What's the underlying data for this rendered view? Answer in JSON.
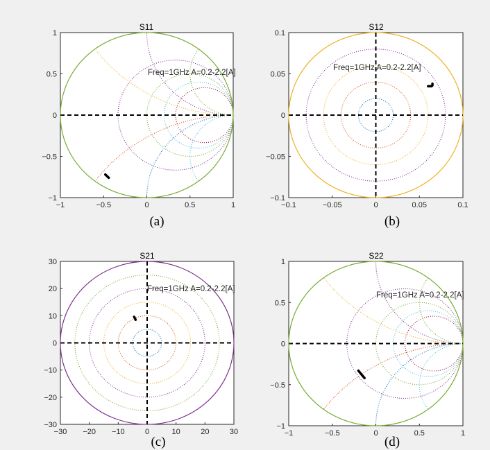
{
  "chart_data": [
    {
      "type": "scatter",
      "subtype": "smith",
      "title": "S11",
      "caption": "(a)",
      "annotation": "Freq=1GHz A=0.2-2.2[A]",
      "xlim": [
        -1,
        1
      ],
      "ylim": [
        -1,
        1
      ],
      "xticks": [
        -1,
        -0.5,
        0,
        0.5,
        1
      ],
      "yticks": [
        -1,
        -0.5,
        0,
        0.5,
        1
      ],
      "xtick_labels": [
        "−1",
        "−0.5",
        "0",
        "0.5",
        "1"
      ],
      "ytick_labels": [
        "−1",
        "−0.5",
        "0",
        "0.5",
        "1"
      ],
      "boundary_color": "#77ac30",
      "resistance_circles": [
        {
          "r": 0.5,
          "color": "#7e2f8e"
        },
        {
          "r": 1,
          "color": "#77ac30"
        },
        {
          "r": 1.5,
          "color": "#4dbeee"
        },
        {
          "r": 2,
          "color": "#a2142f"
        }
      ],
      "reactance_arcs": [
        {
          "x": 1,
          "color": "#7e2f8e"
        },
        {
          "x": -1,
          "color": "#0072bd"
        },
        {
          "x": 0.5,
          "color": "#edb120"
        },
        {
          "x": -0.5,
          "color": "#d95319"
        },
        {
          "x": 2,
          "color": "#77ac30"
        },
        {
          "x": -2,
          "color": "#4dbeee"
        }
      ],
      "dashed_axes": [
        "horizontal"
      ],
      "series": [
        {
          "name": "trace",
          "x": [
            -0.48,
            -0.46,
            -0.44
          ],
          "y": [
            -0.72,
            -0.74,
            -0.76
          ]
        }
      ]
    },
    {
      "type": "scatter",
      "subtype": "polar",
      "title": "S12",
      "caption": "(b)",
      "annotation": "Freq=1GHz A=0.2-2.2[A]",
      "xlim": [
        -0.1,
        0.1
      ],
      "ylim": [
        -0.1,
        0.1
      ],
      "xticks": [
        -0.1,
        -0.05,
        0,
        0.05,
        0.1
      ],
      "yticks": [
        -0.1,
        -0.05,
        0,
        0.05,
        0.1
      ],
      "xtick_labels": [
        "−0.1",
        "−0.05",
        "0",
        "0.05",
        "0.1"
      ],
      "ytick_labels": [
        "−0.1",
        "−0.05",
        "0",
        "0.05",
        "0.1"
      ],
      "boundary_color": "#edb120",
      "rings": [
        {
          "radius": 0.02,
          "color": "#0072bd"
        },
        {
          "radius": 0.04,
          "color": "#d95319"
        },
        {
          "radius": 0.06,
          "color": "#edb120"
        },
        {
          "radius": 0.08,
          "color": "#7e2f8e"
        }
      ],
      "dashed_axes": [
        "horizontal",
        "vertical"
      ],
      "series": [
        {
          "name": "trace",
          "x": [
            0.06,
            0.064,
            0.065,
            0.065
          ],
          "y": [
            0.035,
            0.035,
            0.036,
            0.038
          ]
        }
      ]
    },
    {
      "type": "scatter",
      "subtype": "polar",
      "title": "S21",
      "caption": "(c)",
      "annotation": "Freq=1GHz A=0.2-2.2[A]",
      "xlim": [
        -30,
        30
      ],
      "ylim": [
        -30,
        30
      ],
      "xticks": [
        -30,
        -20,
        -10,
        0,
        10,
        20,
        30
      ],
      "yticks": [
        -30,
        -20,
        -10,
        0,
        10,
        20,
        30
      ],
      "xtick_labels": [
        "−30",
        "−20",
        "−10",
        "0",
        "10",
        "20",
        "30"
      ],
      "ytick_labels": [
        "−30",
        "−20",
        "−10",
        "0",
        "10",
        "20",
        "30"
      ],
      "boundary_color": "#7e2f8e",
      "rings": [
        {
          "radius": 5,
          "color": "#0072bd"
        },
        {
          "radius": 10,
          "color": "#d95319"
        },
        {
          "radius": 15,
          "color": "#edb120"
        },
        {
          "radius": 20,
          "color": "#7e2f8e"
        },
        {
          "radius": 25,
          "color": "#77ac30"
        }
      ],
      "dashed_axes": [
        "horizontal",
        "vertical"
      ],
      "series": [
        {
          "name": "trace",
          "x": [
            -4.5,
            -4.2,
            -4.0
          ],
          "y": [
            9.6,
            9.0,
            8.5
          ]
        }
      ]
    },
    {
      "type": "scatter",
      "subtype": "smith",
      "title": "S22",
      "caption": "(d)",
      "annotation": "Freq=1GHz A=0.2-2.2[A]",
      "xlim": [
        -1,
        1
      ],
      "ylim": [
        -1,
        1
      ],
      "xticks": [
        -1,
        -0.5,
        0,
        0.5,
        1
      ],
      "yticks": [
        -1,
        -0.5,
        0,
        0.5,
        1
      ],
      "xtick_labels": [
        "−1",
        "−0.5",
        "0",
        "0.5",
        "1"
      ],
      "ytick_labels": [
        "−1",
        "−0.5",
        "0",
        "0.5",
        "1"
      ],
      "boundary_color": "#77ac30",
      "resistance_circles": [
        {
          "r": 0.5,
          "color": "#7e2f8e"
        },
        {
          "r": 1,
          "color": "#77ac30"
        },
        {
          "r": 1.5,
          "color": "#4dbeee"
        },
        {
          "r": 2,
          "color": "#a2142f"
        }
      ],
      "reactance_arcs": [
        {
          "x": 1,
          "color": "#7e2f8e"
        },
        {
          "x": -1,
          "color": "#0072bd"
        },
        {
          "x": 0.5,
          "color": "#edb120"
        },
        {
          "x": -0.5,
          "color": "#d95319"
        },
        {
          "x": 2,
          "color": "#77ac30"
        },
        {
          "x": -2,
          "color": "#4dbeee"
        }
      ],
      "dashed_axes": [
        "horizontal"
      ],
      "series": [
        {
          "name": "trace",
          "x": [
            -0.2,
            -0.165,
            -0.13
          ],
          "y": [
            -0.33,
            -0.375,
            -0.42
          ]
        }
      ]
    }
  ]
}
